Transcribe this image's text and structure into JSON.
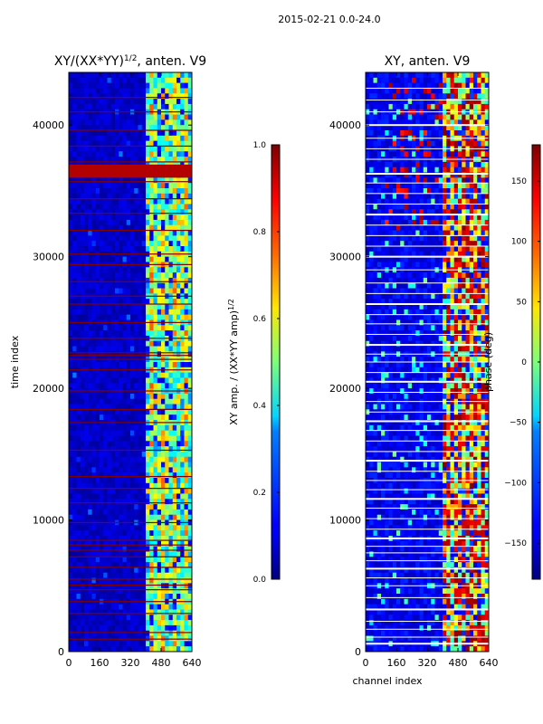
{
  "suptitle": "2015-02-21 0.0-24.0",
  "chart_data": [
    {
      "type": "heatmap",
      "title_main": "XY/(XX*YY)",
      "title_sup": "1/2",
      "title_tail": ", anten. V9",
      "xlabel": "",
      "ylabel": "time index",
      "xlim": [
        0,
        640
      ],
      "ylim": [
        0,
        44000
      ],
      "xticks": [
        "0",
        "160",
        "320",
        "480",
        "640"
      ],
      "yticks": [
        "0",
        "10000",
        "20000",
        "30000",
        "40000"
      ],
      "colorbar": {
        "label_main": "XY amp. / (XX*YY amp)",
        "label_sup": "1/2",
        "range": [
          0.0,
          1.0
        ],
        "ticks": [
          "0.0",
          "0.2",
          "0.4",
          "0.6",
          "0.8",
          "1.0"
        ]
      },
      "description": "Normalized cross-correlation amplitude; low (~0.05) background below channel ~400, patchy high values (0.3–0.7) for channels ~400–640; flagged rows saturate to 1.0"
    },
    {
      "type": "heatmap",
      "title": "XY, anten. V9",
      "xlabel": "channel index",
      "ylabel": "",
      "xlim": [
        0,
        640
      ],
      "ylim": [
        0,
        44000
      ],
      "xticks": [
        "0",
        "160",
        "320",
        "480",
        "640"
      ],
      "yticks": [
        "0",
        "10000",
        "20000",
        "30000",
        "40000"
      ],
      "colorbar": {
        "label": "phase (deg)",
        "range": [
          -180,
          180
        ],
        "ticks": [
          "−150",
          "−100",
          "−50",
          "0",
          "50",
          "100",
          "150"
        ]
      },
      "description": "Cross-correlation phase; mostly negative (~-150) background, channels ~400–640 show wrapping phase bands from -50 to 180; flagged rows appear as white stripes"
    }
  ]
}
